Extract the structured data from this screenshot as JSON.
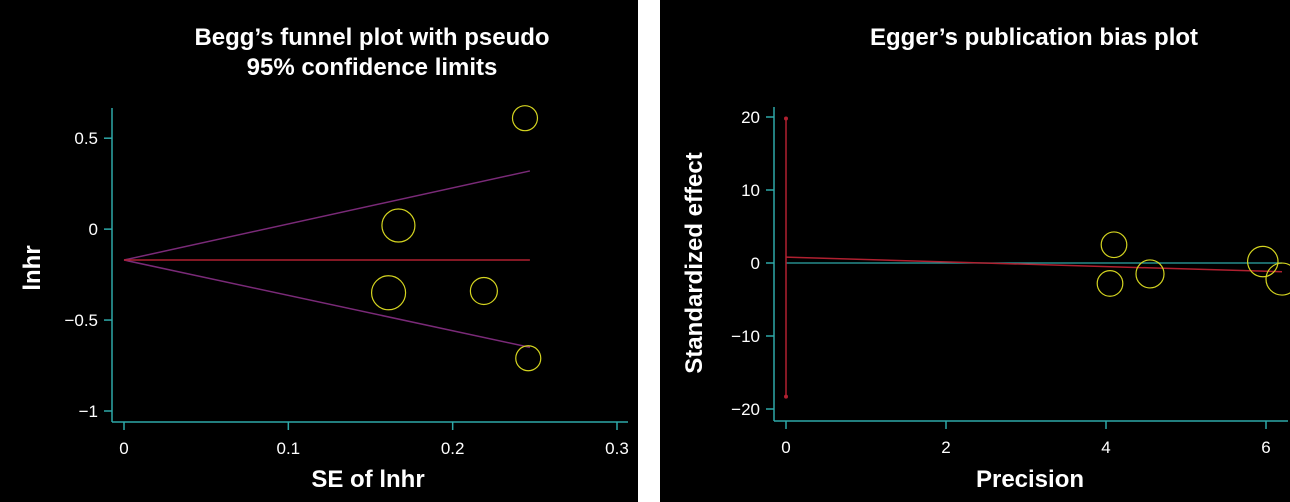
{
  "chart_data": [
    {
      "type": "scatter",
      "title": [
        "Begg’s funnel plot with pseudo",
        "95% confidence limits"
      ],
      "xlabel": "SE of lnhr",
      "ylabel": "lnhr",
      "xlim": [
        0,
        0.3
      ],
      "ylim": [
        -1,
        0.6
      ],
      "x_ticks": [
        0,
        0.1,
        0.2,
        0.3
      ],
      "x_tick_labels": [
        "0",
        "0.1",
        "0.2",
        "0.3"
      ],
      "y_ticks": [
        0.5,
        0,
        -0.5,
        -1
      ],
      "y_tick_labels": [
        "0.5",
        "0",
        "−0.5",
        "−1"
      ],
      "pooled_estimate": -0.17,
      "funnel": {
        "apex_x": 0,
        "end_x": 0.247,
        "upper_end_y": 0.32,
        "lower_end_y": -0.65
      },
      "points": [
        {
          "x": 0.244,
          "y": 0.61,
          "weight": 0.55
        },
        {
          "x": 0.167,
          "y": 0.02,
          "weight": 0.95
        },
        {
          "x": 0.161,
          "y": -0.35,
          "weight": 1.0
        },
        {
          "x": 0.219,
          "y": -0.34,
          "weight": 0.65
        },
        {
          "x": 0.246,
          "y": -0.71,
          "weight": 0.55
        }
      ],
      "colors": {
        "points": "#d4d420",
        "funnel": "#7a2a78",
        "pooled": "#b02030",
        "axis": "#2ea8a8"
      },
      "grid": false
    },
    {
      "type": "scatter",
      "title": [
        "Egger’s publication bias plot"
      ],
      "xlabel": "Precision",
      "ylabel": "Standardized effect",
      "xlim": [
        0,
        6.2
      ],
      "ylim": [
        -20,
        20
      ],
      "x_ticks": [
        0,
        2,
        4,
        6
      ],
      "x_tick_labels": [
        "0",
        "2",
        "4",
        "6"
      ],
      "y_ticks": [
        20,
        10,
        0,
        -10,
        -20
      ],
      "y_tick_labels": [
        "20",
        "10",
        "0",
        "−10",
        "−20"
      ],
      "regression_line": {
        "x": [
          0,
          6.2
        ],
        "y": [
          0.8,
          -1.2
        ]
      },
      "intercept_ci": {
        "x": 0,
        "low": -18.3,
        "high": 19.8
      },
      "points": [
        {
          "x": 4.1,
          "y": 2.5,
          "weight": 0.6
        },
        {
          "x": 4.05,
          "y": -2.8,
          "weight": 0.6
        },
        {
          "x": 4.55,
          "y": -1.5,
          "weight": 0.75
        },
        {
          "x": 5.96,
          "y": 0.2,
          "weight": 0.9
        },
        {
          "x": 6.2,
          "y": -2.2,
          "weight": 1.0
        }
      ],
      "colors": {
        "points": "#d4d420",
        "regression": "#b02030",
        "ci": "#b02030",
        "axis": "#2ea8a8"
      },
      "grid": false
    }
  ]
}
